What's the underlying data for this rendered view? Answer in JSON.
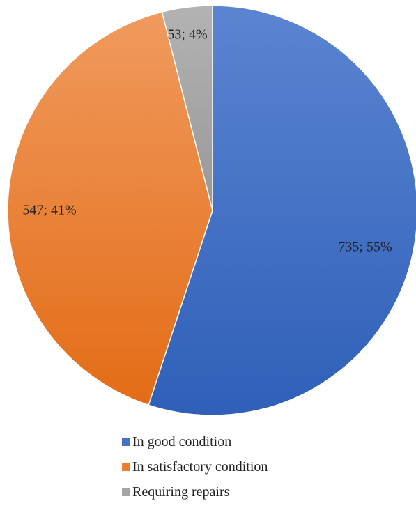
{
  "chart_data": {
    "type": "pie",
    "title": "",
    "start_angle_deg": 0,
    "direction": "clockwise",
    "legend_position": "bottom",
    "slices": [
      {
        "name": "In good condition",
        "value": 735,
        "percent": 55,
        "label": "735; 55%",
        "color": "#4472c4"
      },
      {
        "name": "In satisfactory condition",
        "value": 547,
        "percent": 41,
        "label": "547; 41%",
        "color": "#ed7d31"
      },
      {
        "name": "Requiring repairs",
        "value": 53,
        "percent": 4,
        "label": "53; 4%",
        "color": "#a5a5a5"
      }
    ]
  },
  "legend": {
    "items": [
      {
        "label": "In good condition",
        "color": "#4472c4"
      },
      {
        "label": "In satisfactory condition",
        "color": "#ed7d31"
      },
      {
        "label": "Requiring repairs",
        "color": "#a5a5a5"
      }
    ]
  }
}
